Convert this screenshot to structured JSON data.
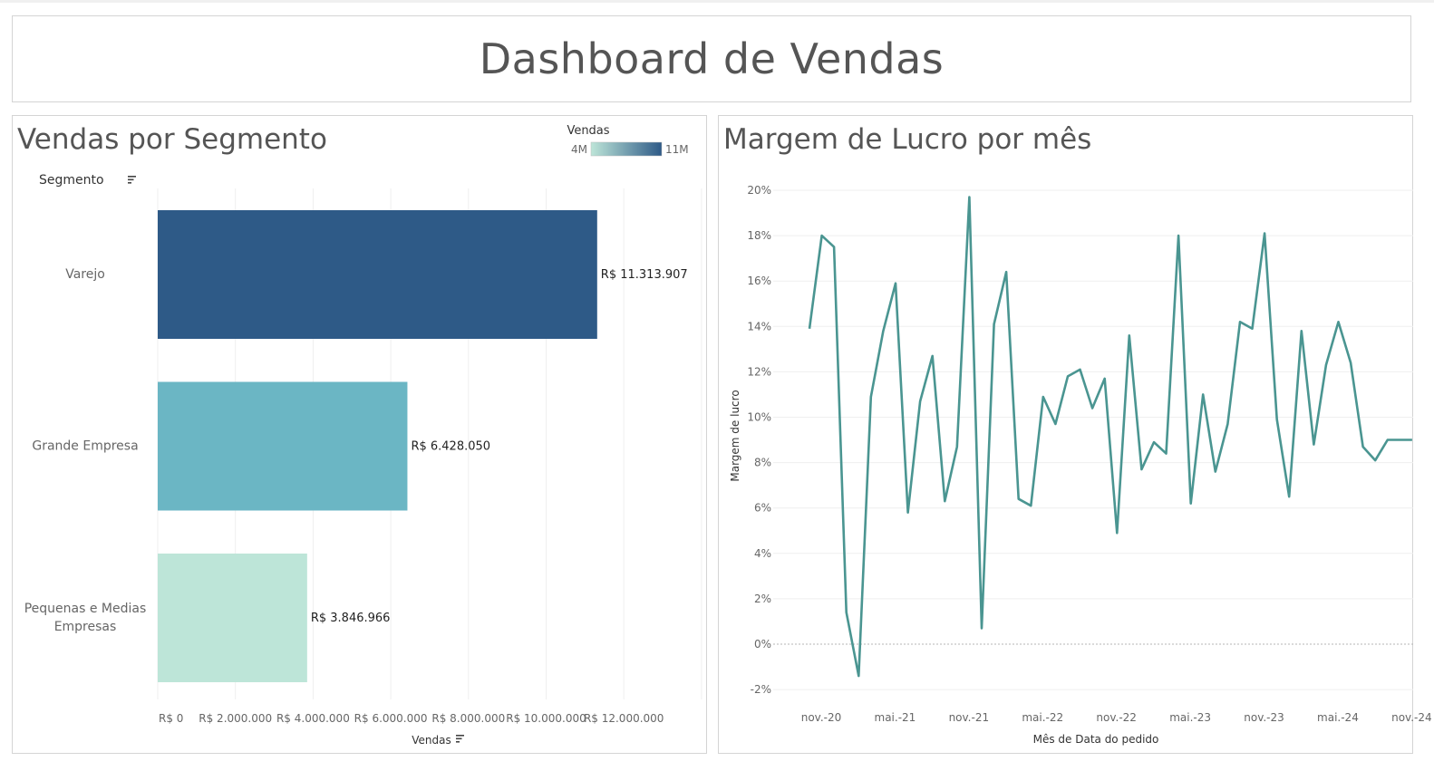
{
  "dashboard": {
    "title": "Dashboard de Vendas"
  },
  "chart_data": [
    {
      "type": "bar",
      "orientation": "horizontal",
      "title": "Vendas por Segmento",
      "row_header": "Segmento",
      "xlabel": "Vendas",
      "categories": [
        "Varejo",
        "Grande Empresa",
        "Pequenas e Medias Empresas"
      ],
      "category_lines": [
        [
          "Varejo"
        ],
        [
          "Grande Empresa"
        ],
        [
          "Pequenas e Medias",
          "Empresas"
        ]
      ],
      "values": [
        11313907,
        6428050,
        3846966
      ],
      "value_labels": [
        "R$ 11.313.907",
        "R$ 6.428.050",
        "R$ 3.846.966"
      ],
      "bar_colors": [
        "#2e5a87",
        "#6bb6c4",
        "#bde5d8"
      ],
      "xlim": [
        0,
        14000000
      ],
      "xticks": [
        0,
        2000000,
        4000000,
        6000000,
        8000000,
        10000000,
        12000000
      ],
      "xtick_labels": [
        "R$ 0",
        "R$ 2.000.000",
        "R$ 4.000.000",
        "R$ 6.000.000",
        "R$ 8.000.000",
        "R$ 10.000.000",
        "R$ 12.000.000"
      ],
      "grid": true,
      "legend": {
        "title": "Vendas",
        "min_label": "4M",
        "max_label": "11M",
        "color_start": "#bde5d8",
        "color_end": "#2e5a87",
        "placement": "top-right"
      }
    },
    {
      "type": "line",
      "title": "Margem de Lucro por mês",
      "xlabel": "Mês de Data do pedido",
      "ylabel": "Margem de lucro",
      "ylim": [
        -2.5,
        20.5
      ],
      "yticks": [
        -2,
        0,
        2,
        4,
        6,
        8,
        10,
        12,
        14,
        16,
        18,
        20
      ],
      "ytick_labels": [
        "-2%",
        "0%",
        "2%",
        "4%",
        "6%",
        "8%",
        "10%",
        "12%",
        "14%",
        "16%",
        "18%",
        "20%"
      ],
      "x_start": "2020-11",
      "xtick_labels": [
        "nov.-20",
        "mai.-21",
        "nov.-21",
        "mai.-22",
        "nov.-22",
        "mai.-23",
        "nov.-23",
        "mai.-24",
        "nov.-24"
      ],
      "xtick_months": [
        "2020-11",
        "2021-05",
        "2021-11",
        "2022-05",
        "2022-11",
        "2023-05",
        "2023-11",
        "2024-05",
        "2024-11"
      ],
      "line_color": "#4a9591",
      "grid": true,
      "series": [
        {
          "x": [
            "2020-10",
            "2020-11",
            "2020-12",
            "2021-01",
            "2021-02",
            "2021-03",
            "2021-04",
            "2021-05",
            "2021-06",
            "2021-07",
            "2021-08",
            "2021-09",
            "2021-10",
            "2021-11",
            "2021-12",
            "2022-01",
            "2022-02",
            "2022-03",
            "2022-04",
            "2022-05",
            "2022-06",
            "2022-07",
            "2022-08",
            "2022-09",
            "2022-10",
            "2022-11",
            "2022-12",
            "2023-01",
            "2023-02",
            "2023-03",
            "2023-04",
            "2023-05",
            "2023-06",
            "2023-07",
            "2023-08",
            "2023-09",
            "2023-10",
            "2023-11",
            "2023-12",
            "2024-01",
            "2024-02",
            "2024-03",
            "2024-04",
            "2024-05",
            "2024-06",
            "2024-07",
            "2024-08",
            "2024-09",
            "2024-10",
            "2024-11"
          ],
          "values": [
            13.9,
            18.0,
            17.5,
            1.4,
            -1.4,
            10.9,
            13.8,
            15.9,
            5.8,
            10.7,
            12.7,
            6.3,
            8.7,
            19.7,
            0.7,
            14.1,
            16.4,
            6.4,
            6.1,
            10.9,
            9.7,
            11.8,
            12.1,
            10.4,
            11.7,
            4.9,
            13.6,
            7.7,
            8.9,
            8.4,
            18.0,
            6.2,
            11.0,
            7.6,
            9.7,
            14.2,
            13.9,
            18.1,
            9.9,
            6.5,
            13.8,
            8.8,
            12.3,
            14.2,
            12.4,
            8.7,
            8.1,
            9.0,
            9.0,
            9.0
          ]
        }
      ]
    }
  ]
}
